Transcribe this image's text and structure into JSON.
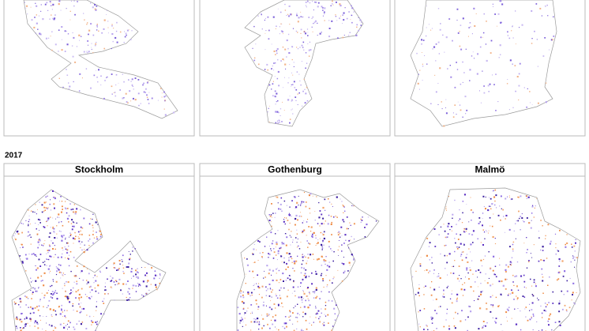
{
  "year_label": "2017",
  "panels": [
    {
      "title": "Stockholm"
    },
    {
      "title": "Gothenburg"
    },
    {
      "title": "Malmö"
    }
  ]
}
